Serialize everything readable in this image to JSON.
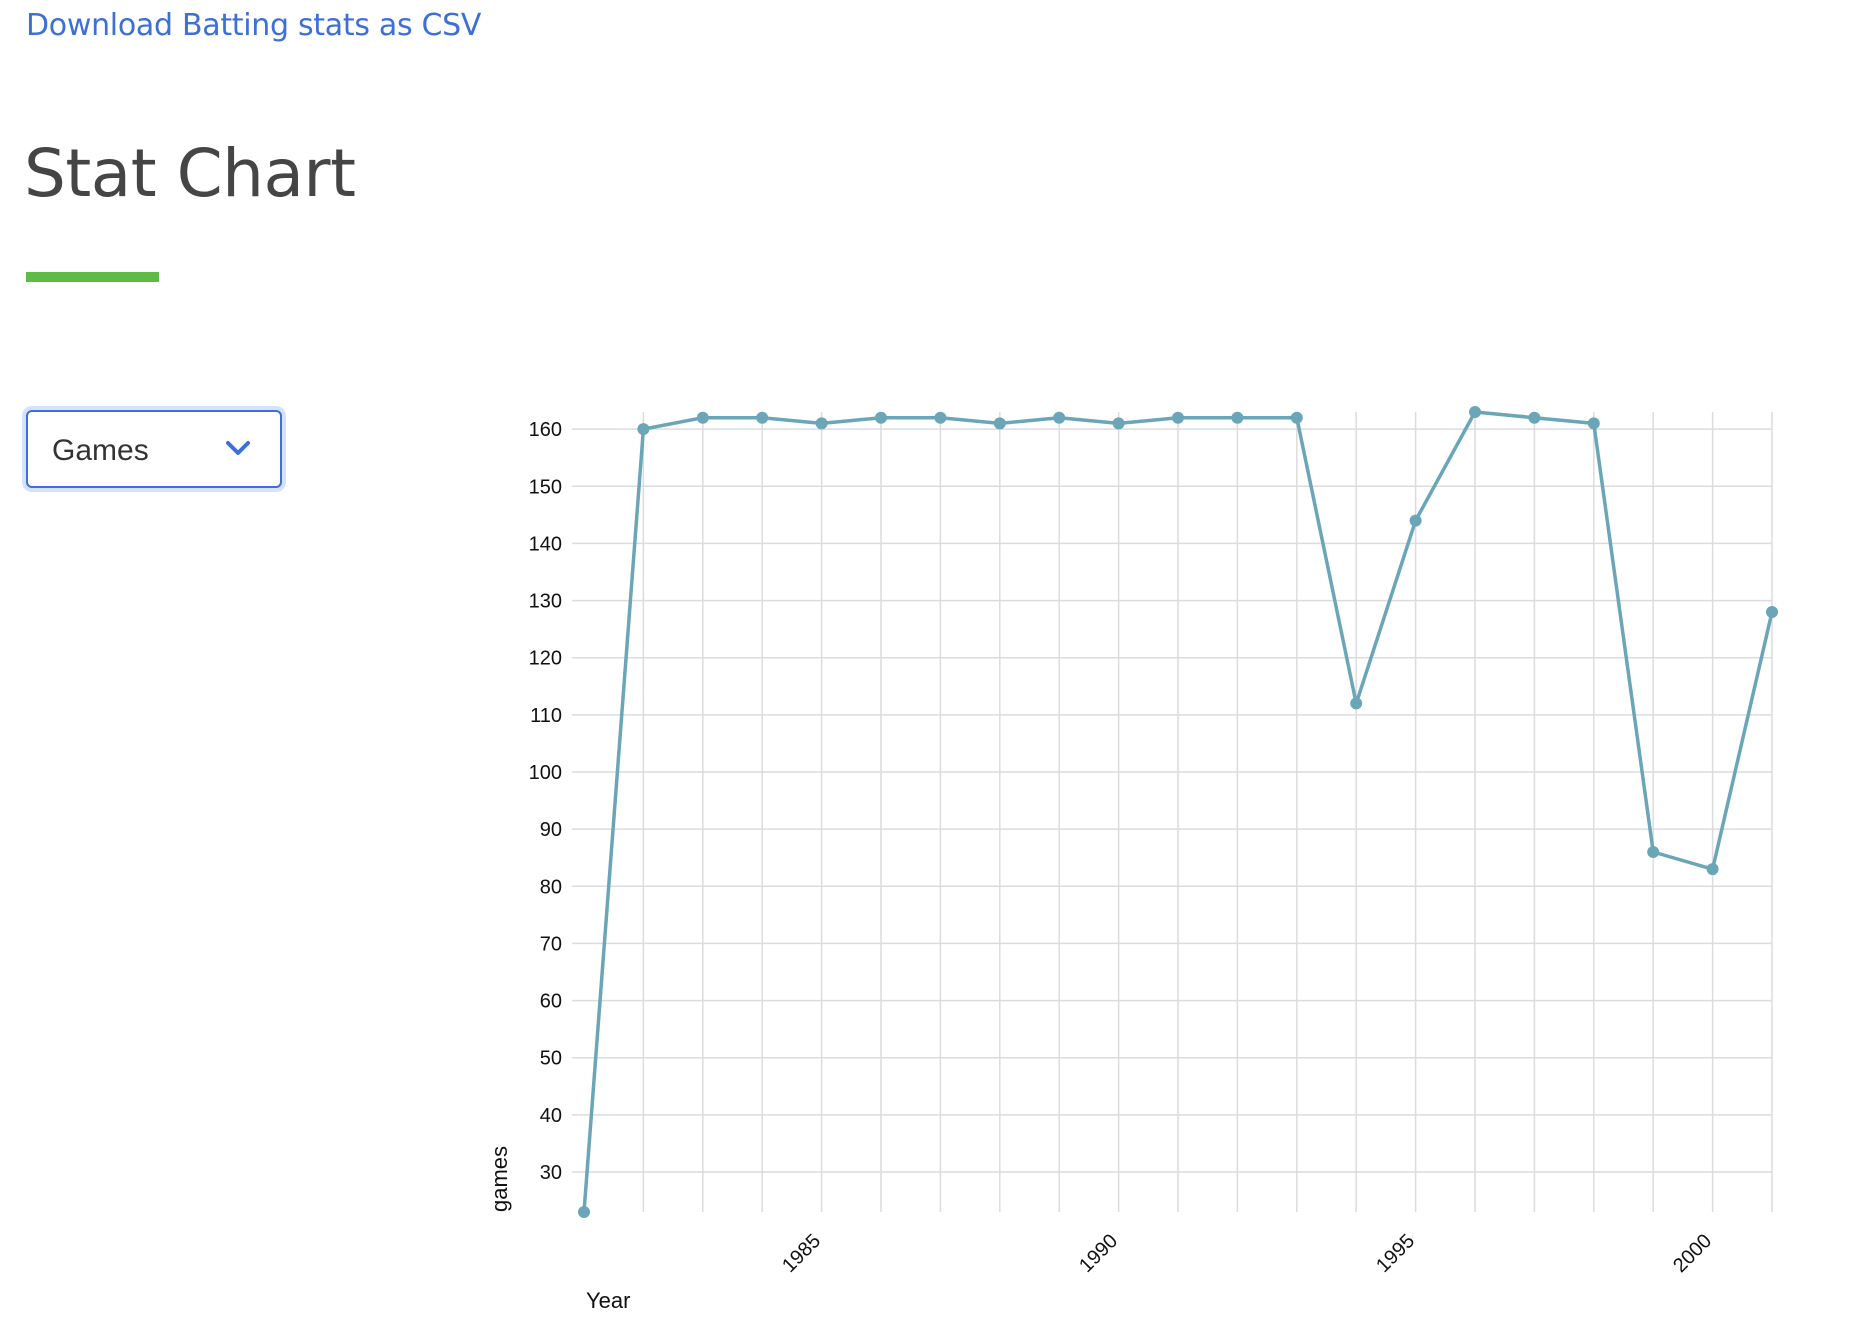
{
  "header": {
    "download_link": "Download Batting stats as CSV"
  },
  "page": {
    "title": "Stat Chart"
  },
  "stat_select": {
    "selected": "Games",
    "icon": "chevron-down-icon"
  },
  "colors": {
    "link": "#3d6fd8",
    "accent_bar": "#5dbb46",
    "series": "#6aa6b8",
    "grid": "#dcdcdc"
  },
  "chart_data": {
    "type": "line",
    "xlabel": "Year",
    "ylabel": "games",
    "xlim": [
      1981,
      2001
    ],
    "ylim": [
      23,
      163
    ],
    "x_ticks": [
      1985,
      1990,
      1995,
      2000
    ],
    "y_ticks": [
      30,
      40,
      50,
      60,
      70,
      80,
      90,
      100,
      110,
      120,
      130,
      140,
      150,
      160
    ],
    "grid": true,
    "series": [
      {
        "x": [
          1981,
          1982,
          1983,
          1984,
          1985,
          1986,
          1987,
          1988,
          1989,
          1990,
          1991,
          1992,
          1993,
          1994,
          1995,
          1996,
          1997,
          1998,
          1999,
          2000,
          2001
        ],
        "values": [
          23,
          160,
          162,
          162,
          161,
          162,
          162,
          161,
          162,
          161,
          162,
          162,
          162,
          112,
          144,
          163,
          162,
          161,
          86,
          83,
          128
        ]
      }
    ]
  }
}
